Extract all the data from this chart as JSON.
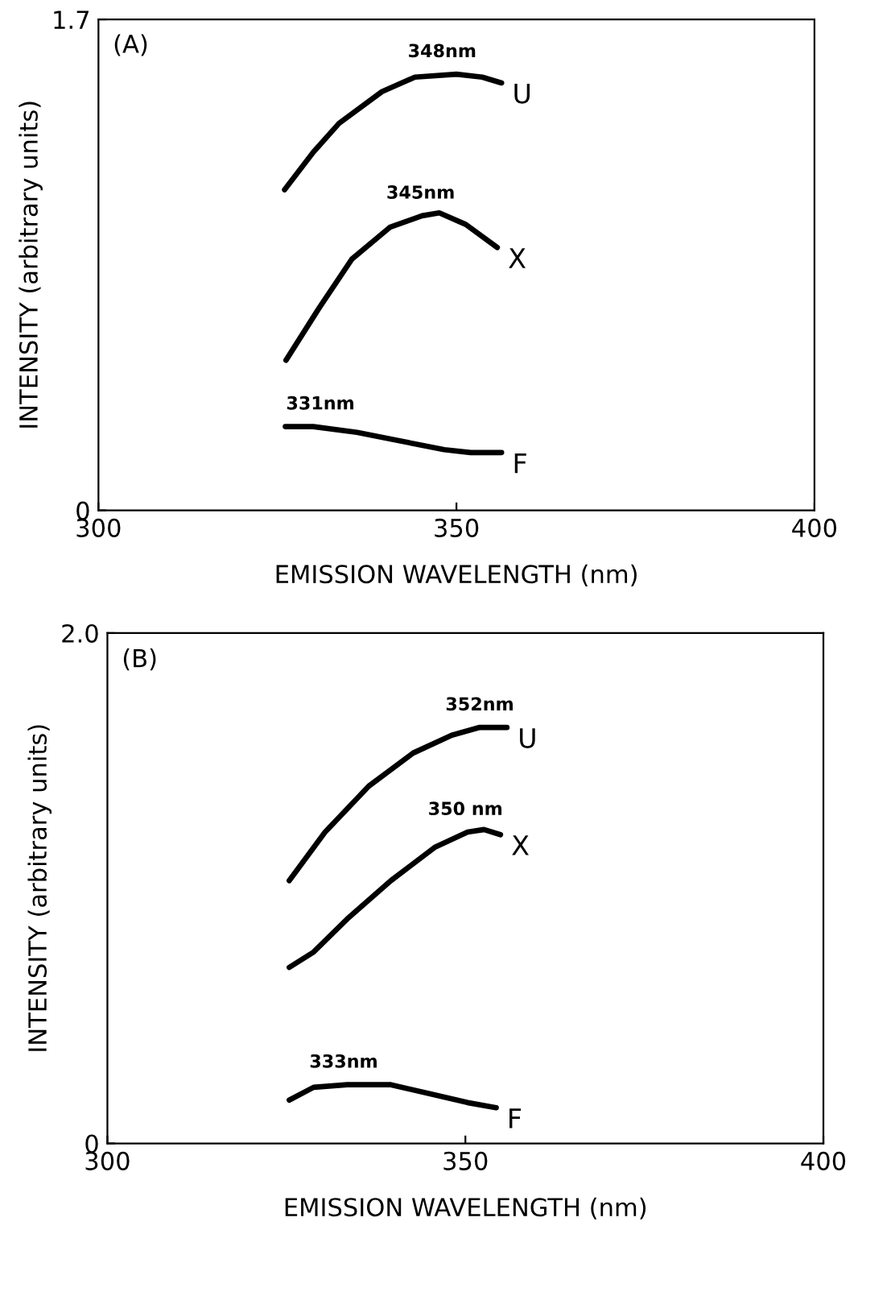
{
  "chart_data": [
    {
      "type": "line",
      "xlabel": "EMISSION WAVELENGTH (nm)",
      "ylabel": "INTENSITY (arbitrary units)",
      "xlim": [
        300,
        400
      ],
      "ylim": [
        0,
        1.7
      ],
      "xticks": [
        300,
        350,
        400
      ],
      "yticks": [
        0,
        1.7
      ],
      "grid": false,
      "legend": false,
      "marker": "none",
      "line_style": "solid",
      "annotations": [
        "(A)",
        {
          "text": "348nm",
          "x": 348,
          "y": 1.51
        },
        {
          "text": "345nm",
          "x": 345,
          "y": 1.02
        },
        {
          "text": "331nm",
          "x": 331,
          "y": 0.29
        }
      ],
      "series": [
        {
          "name": "U",
          "color": "#000000",
          "x": [
            326,
            330,
            333.6,
            339.6,
            344.2,
            350,
            353.6,
            356.3
          ],
          "values": [
            1.11,
            1.24,
            1.34,
            1.45,
            1.5,
            1.51,
            1.5,
            1.48
          ]
        },
        {
          "name": "X",
          "color": "#000000",
          "x": [
            326.2,
            330.8,
            335.4,
            340.7,
            345.2,
            347.6,
            351.3,
            355.7
          ],
          "values": [
            0.52,
            0.7,
            0.87,
            0.98,
            1.02,
            1.03,
            0.99,
            0.91
          ]
        },
        {
          "name": "F",
          "color": "#000000",
          "x": [
            326.1,
            330,
            336.1,
            342.2,
            348.3,
            352,
            356.3
          ],
          "values": [
            0.29,
            0.29,
            0.27,
            0.24,
            0.21,
            0.2,
            0.2
          ]
        }
      ]
    },
    {
      "type": "line",
      "xlabel": "EMISSION WAVELENGTH (nm)",
      "ylabel": "INTENSITY (arbitrary units)",
      "xlim": [
        300,
        400
      ],
      "ylim": [
        0,
        2.0
      ],
      "xticks": [
        300,
        350,
        400
      ],
      "yticks": [
        0,
        {
          "value": 2.0,
          "label": "2.0"
        }
      ],
      "grid": false,
      "legend": false,
      "marker": "none",
      "line_style": "solid",
      "annotations": [
        "(B)",
        {
          "text": "352nm",
          "x": 352,
          "y": 1.63
        },
        {
          "text": "350 nm",
          "x": 350,
          "y": 1.22
        },
        {
          "text": "333nm",
          "x": 333,
          "y": 0.23
        }
      ],
      "series": [
        {
          "name": "U",
          "color": "#000000",
          "x": [
            325.4,
            330.4,
            336.5,
            342.7,
            348.1,
            351.9,
            355.8
          ],
          "values": [
            1.03,
            1.22,
            1.4,
            1.53,
            1.6,
            1.63,
            1.63
          ]
        },
        {
          "name": "X",
          "color": "#000000",
          "x": [
            325.4,
            328.8,
            333.5,
            339.6,
            345.7,
            350.3,
            352.6,
            354.9
          ],
          "values": [
            0.69,
            0.75,
            0.88,
            1.03,
            1.16,
            1.22,
            1.23,
            1.21
          ]
        },
        {
          "name": "F",
          "color": "#000000",
          "x": [
            325.4,
            328.8,
            333.5,
            339.6,
            345.7,
            350.3,
            354.3
          ],
          "values": [
            0.17,
            0.22,
            0.23,
            0.23,
            0.19,
            0.16,
            0.14
          ]
        }
      ]
    }
  ]
}
